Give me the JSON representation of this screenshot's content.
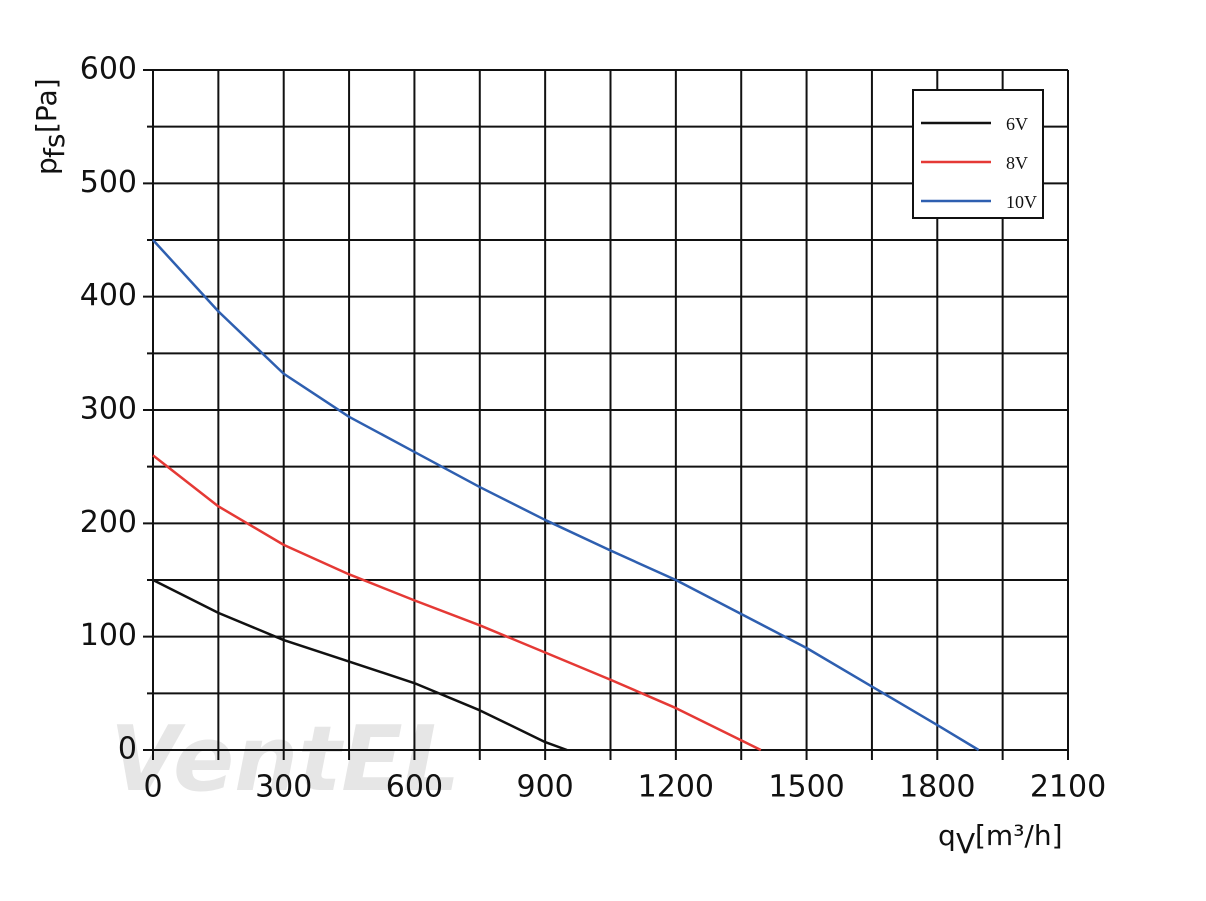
{
  "chart_data": {
    "type": "line",
    "ylabel_symbol": "p",
    "ylabel_subscript": "fs",
    "ylabel_unit": "[Pa]",
    "xlabel_symbol": "q",
    "xlabel_subscript": "V",
    "xlabel_unit": "[m³/h]",
    "watermark": "VentEL",
    "xlim": [
      0,
      2100
    ],
    "xticks": [
      0,
      300,
      600,
      900,
      1200,
      1500,
      1800,
      2100
    ],
    "ylim": [
      0,
      600
    ],
    "yticks": [
      0,
      100,
      200,
      300,
      400,
      500,
      600
    ],
    "grid": true,
    "minor_grid": true,
    "legend": "upper right",
    "series": [
      {
        "name": "6V",
        "color": "#111111",
        "x": [
          0,
          150,
          300,
          450,
          600,
          750,
          900,
          950
        ],
        "values": [
          150,
          121,
          97,
          78,
          59,
          35,
          7,
          0
        ]
      },
      {
        "name": "8V",
        "color": "#e53935",
        "x": [
          0,
          150,
          300,
          450,
          600,
          750,
          900,
          1050,
          1200,
          1395
        ],
        "values": [
          260,
          215,
          181,
          155,
          132,
          110,
          86,
          62,
          37,
          0
        ]
      },
      {
        "name": "10V",
        "color": "#2e5fb0",
        "x": [
          0,
          150,
          300,
          450,
          600,
          750,
          900,
          1050,
          1200,
          1350,
          1500,
          1650,
          1800,
          1895
        ],
        "values": [
          450,
          387,
          332,
          294,
          263,
          232,
          203,
          176,
          150,
          120,
          90,
          56,
          22,
          0
        ]
      }
    ]
  }
}
